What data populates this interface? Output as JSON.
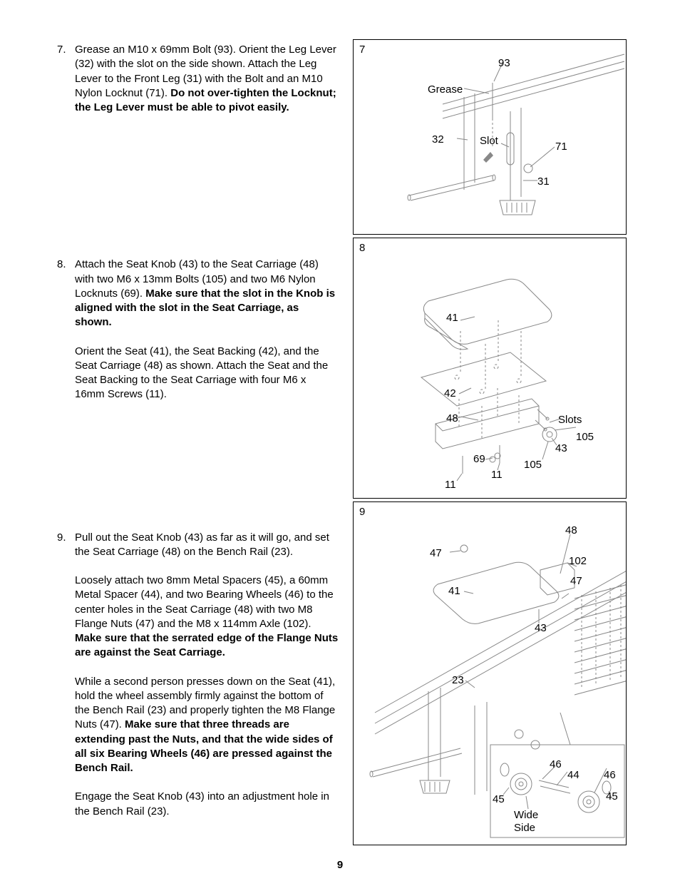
{
  "page_number": "9",
  "steps": [
    {
      "num": "7.",
      "paragraphs": [
        "Grease an M10 x 69mm Bolt (93). Orient the Leg Lever (32) with the slot on the side shown. Attach the Leg Lever to the Front Leg (31) with the Bolt and an M10 Nylon Locknut (71). <b>Do not over-tighten the Locknut; the Leg Lever must be able to pivot easily.</b>"
      ],
      "gap_after": 180
    },
    {
      "num": "8.",
      "paragraphs": [
        "Attach the Seat Knob (43) to the Seat Carriage (48) with two M6 x 13mm Bolts (105) and two M6 Nylon Locknuts (69). <b>Make sure that the slot in the Knob is aligned with the slot in the Seat Carriage, as shown.</b>",
        "Orient the Seat (41), the Seat Backing (42), and the Seat Carriage (48) as shown. Attach the Seat and the Seat Backing to the Seat Carriage with four M6 x 16mm Screws (11)."
      ],
      "gap_after": 160
    },
    {
      "num": "9.",
      "paragraphs": [
        "Pull out the Seat Knob (43) as far as it will go, and set the Seat Carriage (48) on the Bench Rail (23).",
        "Loosely attach two 8mm Metal Spacers (45), a 60mm Metal Spacer (44), and two Bearing Wheels (46) to the center holes in the Seat Carriage (48) with two M8 Flange Nuts (47) and the M8 x 114mm Axle (102). <b>Make sure that the serrated edge of the Flange Nuts are against the Seat Carriage.</b>",
        "While a second person presses down on the Seat (41), hold the wheel assembly firmly against the bottom of the Bench Rail (23) and properly tighten the M8 Flange Nuts (47). <b>Make sure that three threads are extending past the Nuts, and that the wide sides of all six Bearing Wheels (46) are pressed against the Bench Rail.</b>",
        "Engage the Seat Knob (43) into an adjustment hole in the Bench Rail (23)."
      ],
      "gap_after": 0
    }
  ],
  "diagram1": {
    "num": "7",
    "labels": {
      "n93": "93",
      "grease": "Grease",
      "n32": "32",
      "slot": "Slot",
      "n71": "71",
      "n31": "31"
    }
  },
  "diagram2": {
    "num": "8",
    "labels": {
      "n41": "41",
      "n42": "42",
      "n48": "48",
      "slots": "Slots",
      "n105a": "105",
      "n105b": "105",
      "n43": "43",
      "n69": "69",
      "n11a": "11",
      "n11b": "11"
    }
  },
  "diagram3": {
    "num": "9",
    "labels": {
      "n48": "48",
      "n47a": "47",
      "n102": "102",
      "n47b": "47",
      "n41": "41",
      "n43": "43",
      "n23": "23",
      "n46a": "46",
      "n44": "44",
      "n46b": "46",
      "n45a": "45",
      "n45b": "45",
      "wideside": "Wide\nSide"
    }
  }
}
